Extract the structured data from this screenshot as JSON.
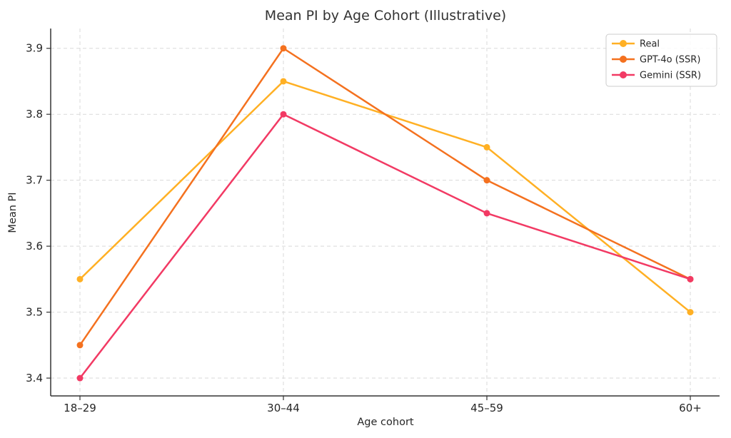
{
  "chart_data": {
    "type": "line",
    "title": "Mean PI by Age Cohort (Illustrative)",
    "xlabel": "Age cohort",
    "ylabel": "Mean PI",
    "categories": [
      "18–29",
      "30–44",
      "45–59",
      "60+"
    ],
    "series": [
      {
        "name": "Real",
        "color": "#FFB024",
        "values": [
          3.55,
          3.85,
          3.75,
          3.5
        ]
      },
      {
        "name": "GPT-4o (SSR)",
        "color": "#F4711F",
        "values": [
          3.45,
          3.9,
          3.7,
          3.55
        ]
      },
      {
        "name": "Gemini (SSR)",
        "color": "#F23A64",
        "values": [
          3.4,
          3.8,
          3.65,
          3.55
        ]
      }
    ],
    "ytick_values": [
      3.4,
      3.5,
      3.6,
      3.7,
      3.8,
      3.9
    ],
    "ytick_labels": [
      "3.4",
      "3.5",
      "3.6",
      "3.7",
      "3.8",
      "3.9"
    ],
    "ylim": [
      3.373,
      3.93
    ],
    "grid": true,
    "grid_style": "dashed",
    "grid_color": "#d9d9d9",
    "spine_color": "#333333",
    "text_color": "#262626",
    "background_color": "#ffffff",
    "legend_position": "upper right",
    "legend_entries": [
      "Real",
      "GPT-4o (SSR)",
      "Gemini (SSR)"
    ]
  }
}
